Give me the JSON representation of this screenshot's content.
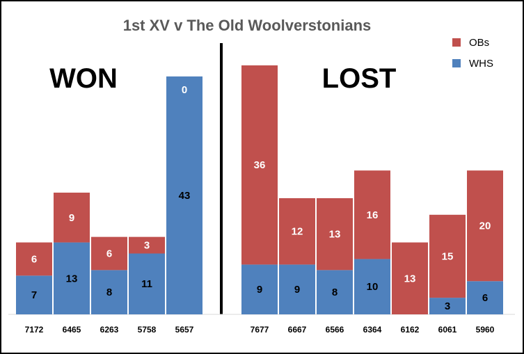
{
  "chart_data": {
    "type": "bar",
    "stacked": true,
    "title": "1st XV v The Old Woolverstonians",
    "groups": [
      {
        "label": "WON",
        "categories": [
          "7172",
          "6465",
          "6263",
          "5758",
          "5657"
        ]
      },
      {
        "label": "LOST",
        "categories": [
          "7677",
          "6667",
          "6566",
          "6364",
          "6162",
          "6061",
          "5960"
        ]
      }
    ],
    "categories": [
      "7172",
      "6465",
      "6263",
      "5758",
      "5657",
      "7677",
      "6667",
      "6566",
      "6364",
      "6162",
      "6061",
      "5960"
    ],
    "series": [
      {
        "name": "WHS",
        "color": "#4F81BD",
        "values": [
          7,
          13,
          8,
          11,
          43,
          9,
          9,
          8,
          10,
          0,
          3,
          6
        ]
      },
      {
        "name": "OBs",
        "color": "#C0504D",
        "values": [
          6,
          9,
          6,
          3,
          0,
          36,
          12,
          13,
          16,
          13,
          15,
          20
        ]
      }
    ],
    "legend": {
      "position": "top-right",
      "items": [
        "OBs",
        "WHS"
      ]
    },
    "ylim": [
      0,
      45
    ],
    "grid": false
  }
}
